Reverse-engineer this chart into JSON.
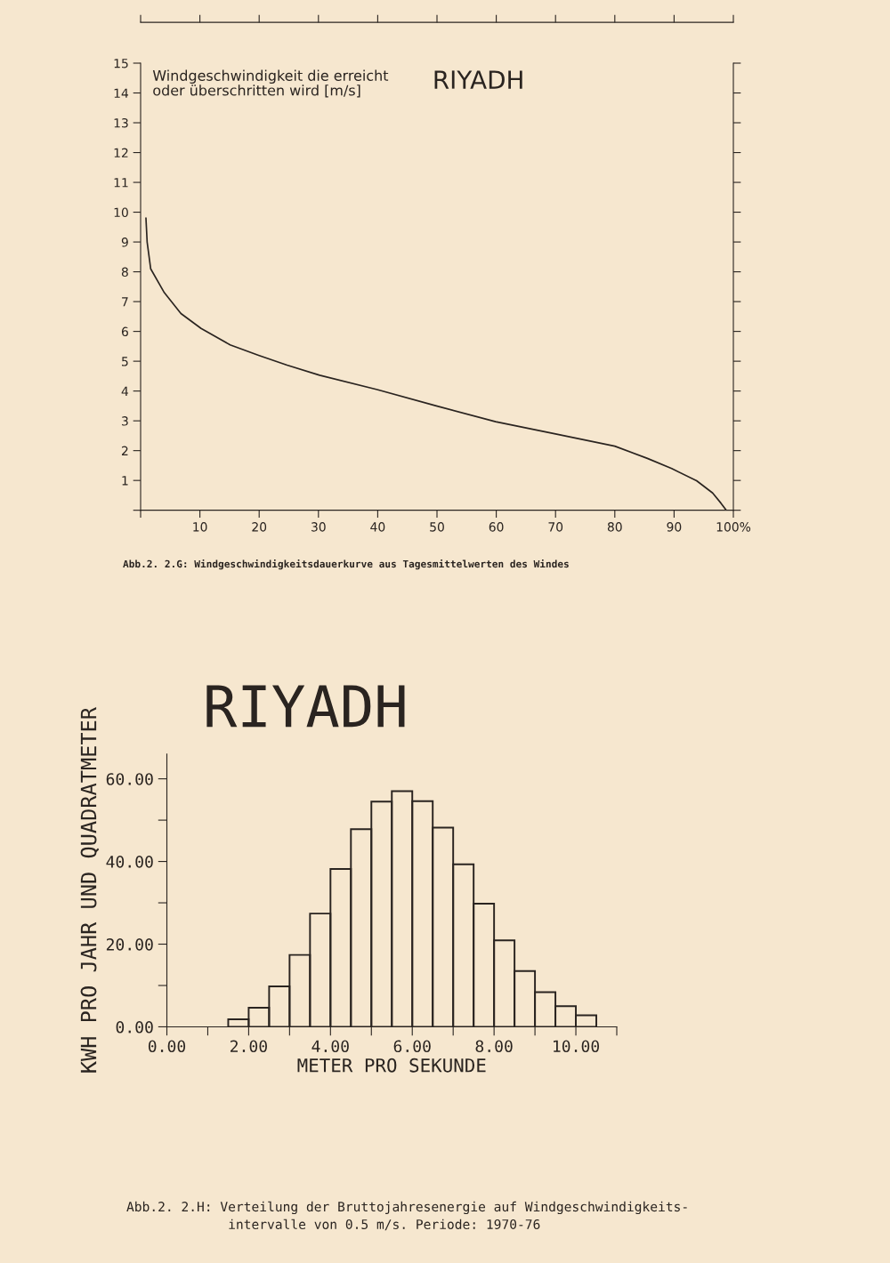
{
  "chart_data": [
    {
      "type": "line",
      "title": "RIYADH",
      "ylabel": "Windgeschwindigkeit die erreicht\noder überschritten wird [m/s]",
      "annotations": [
        "Abb.2. 2.G: Windgeschwindigkeitsdauerkurve aus Tagesmittelwerten des Windes"
      ],
      "series": [
        {
          "color": "#2a2420",
          "x": [
            0.9,
            1.1,
            1.7,
            4.0,
            6.8,
            10.2,
            15.1,
            19.9,
            24.7,
            30.2,
            39.9,
            49.9,
            59.9,
            70.0,
            80.0,
            85.5,
            89.6,
            93.8,
            96.5,
            97.9,
            98.8
          ],
          "values": [
            9.8,
            9.0,
            8.1,
            7.3,
            6.6,
            6.1,
            5.55,
            5.2,
            4.87,
            4.53,
            4.05,
            3.5,
            2.97,
            2.56,
            2.15,
            1.74,
            1.4,
            0.99,
            0.58,
            0.24,
            0
          ]
        }
      ],
      "xlim": [
        0,
        100
      ],
      "ylim": [
        0,
        15
      ],
      "xticks": [
        {
          "value": 0,
          "label": null
        },
        10,
        20,
        30,
        40,
        50,
        60,
        70,
        80,
        90,
        {
          "value": 100,
          "label": "100%"
        }
      ],
      "yticks": [
        {
          "value": 0,
          "label": null
        },
        1,
        2,
        3,
        4,
        5,
        6,
        7,
        8,
        9,
        10,
        11,
        12,
        13,
        14,
        15
      ],
      "grid": false,
      "legend": false,
      "marker": "none",
      "line_style": "solid"
    },
    {
      "type": "histogram",
      "title": "RIYADH",
      "xlabel": "METER PRO SEKUNDE",
      "ylabel": "KWH PRO JAHR UND QUADRATMETER",
      "annotations": [
        "Abb.2. 2.H: Verteilung der Bruttojahresenergie auf Windgeschwindigkeits-\n             intervalle von 0.5 m/s. Periode: 1970-76"
      ],
      "bins": [
        1.5,
        2.0,
        2.5,
        3.0,
        3.5,
        4.0,
        4.5,
        5.0,
        5.5,
        6.0,
        6.5,
        7.0,
        7.5,
        8.0,
        8.5,
        9.0,
        9.5,
        10.0,
        10.5
      ],
      "values": [
        1.8,
        4.6,
        9.8,
        17.4,
        27.4,
        38.2,
        47.8,
        54.5,
        57.0,
        54.6,
        48.2,
        39.3,
        29.8,
        20.9,
        13.5,
        8.4,
        5.0,
        2.8
      ],
      "color": "#2a2420",
      "xlim": [
        0,
        11
      ],
      "ylim": [
        0,
        66
      ],
      "xticks": [
        {
          "value": 0,
          "label": "0.00"
        },
        {
          "value": 1,
          "label": null
        },
        {
          "value": 2,
          "label": "2.00"
        },
        {
          "value": 3,
          "label": null
        },
        {
          "value": 4,
          "label": "4.00"
        },
        {
          "value": 5,
          "label": null
        },
        {
          "value": 6,
          "label": "6.00"
        },
        {
          "value": 7,
          "label": null
        },
        {
          "value": 8,
          "label": "8.00"
        },
        {
          "value": 9,
          "label": null
        },
        {
          "value": 10,
          "label": "10.00"
        },
        {
          "value": 11,
          "label": null
        }
      ],
      "yticks": [
        {
          "value": 0,
          "label": "0.00"
        },
        {
          "value": 10,
          "label": null
        },
        {
          "value": 20,
          "label": "20.00"
        },
        {
          "value": 30,
          "label": null
        },
        {
          "value": 40,
          "label": "40.00"
        },
        {
          "value": 50,
          "label": null
        },
        {
          "value": 60,
          "label": "60.00"
        }
      ],
      "grid": false,
      "legend": false
    }
  ]
}
